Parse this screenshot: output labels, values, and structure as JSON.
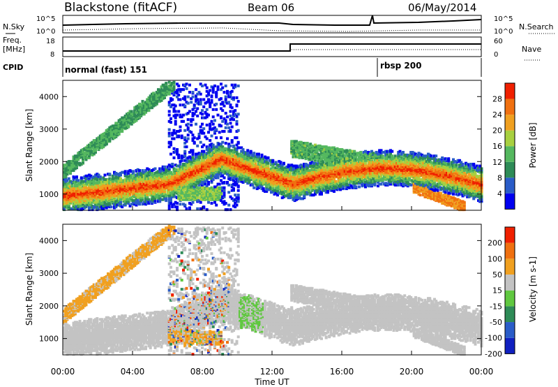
{
  "header": {
    "station": "Blackstone (fitACF)",
    "beam": "Beam 06",
    "date": "06/May/2014"
  },
  "noise_panel": {
    "left_label": "N.Sky",
    "right_label": "N.Search",
    "left_ticks": [
      "10^5",
      "10^0"
    ],
    "right_ticks": [
      "10^5",
      "10^0"
    ]
  },
  "freq_panel": {
    "left_label_1": "Freq.",
    "left_label_2": "[MHz]",
    "right_label": "Nave",
    "left_ticks": [
      "18",
      "8"
    ],
    "right_ticks": [
      "60",
      "0"
    ]
  },
  "cpid_panel": {
    "label": "CPID",
    "modes": [
      "normal (fast) 151",
      "rbsp 200"
    ]
  },
  "colors": {
    "grey_scatter": "#c3c3c3",
    "power_low": "#1f3fbf",
    "power_mid": "#2aa05a",
    "power_high": "#e02010"
  },
  "chart_data": [
    {
      "type": "heatmap",
      "name": "power",
      "ylabel": "Slant Range [km]",
      "xlabel": "Time UT",
      "xlim": [
        0,
        24
      ],
      "ylim": [
        500,
        4500
      ],
      "xticks": [
        "00:00",
        "04:00",
        "08:00",
        "12:00",
        "16:00",
        "20:00",
        "00:00"
      ],
      "yticks": [
        "1000",
        "2000",
        "3000",
        "4000"
      ],
      "colorbar": {
        "label": "Power [dB]",
        "ticks": [
          "4",
          "8",
          "12",
          "16",
          "20",
          "24",
          "28"
        ],
        "colors": [
          "#0000f0",
          "#2a5cc8",
          "#2e8b57",
          "#55b85f",
          "#a8d040",
          "#f0a020",
          "#f07010",
          "#f02000"
        ]
      }
    },
    {
      "type": "heatmap",
      "name": "velocity",
      "ylabel": "Slant Range [km]",
      "xlabel": "Time UT",
      "xlim": [
        0,
        24
      ],
      "ylim": [
        500,
        4500
      ],
      "xticks": [
        "00:00",
        "04:00",
        "08:00",
        "12:00",
        "16:00",
        "20:00",
        "00:00"
      ],
      "yticks": [
        "1000",
        "2000",
        "3000",
        "4000"
      ],
      "colorbar": {
        "label": "Velocity [m s-1]",
        "ticks": [
          "200",
          "100",
          "50",
          "15",
          "-15",
          "-50",
          "-100",
          "-200"
        ],
        "colors": [
          "#1020c0",
          "#2a5cc8",
          "#2e8b57",
          "#60c840",
          "#c3c3c3",
          "#f0a020",
          "#f07010",
          "#f02000"
        ]
      }
    }
  ]
}
